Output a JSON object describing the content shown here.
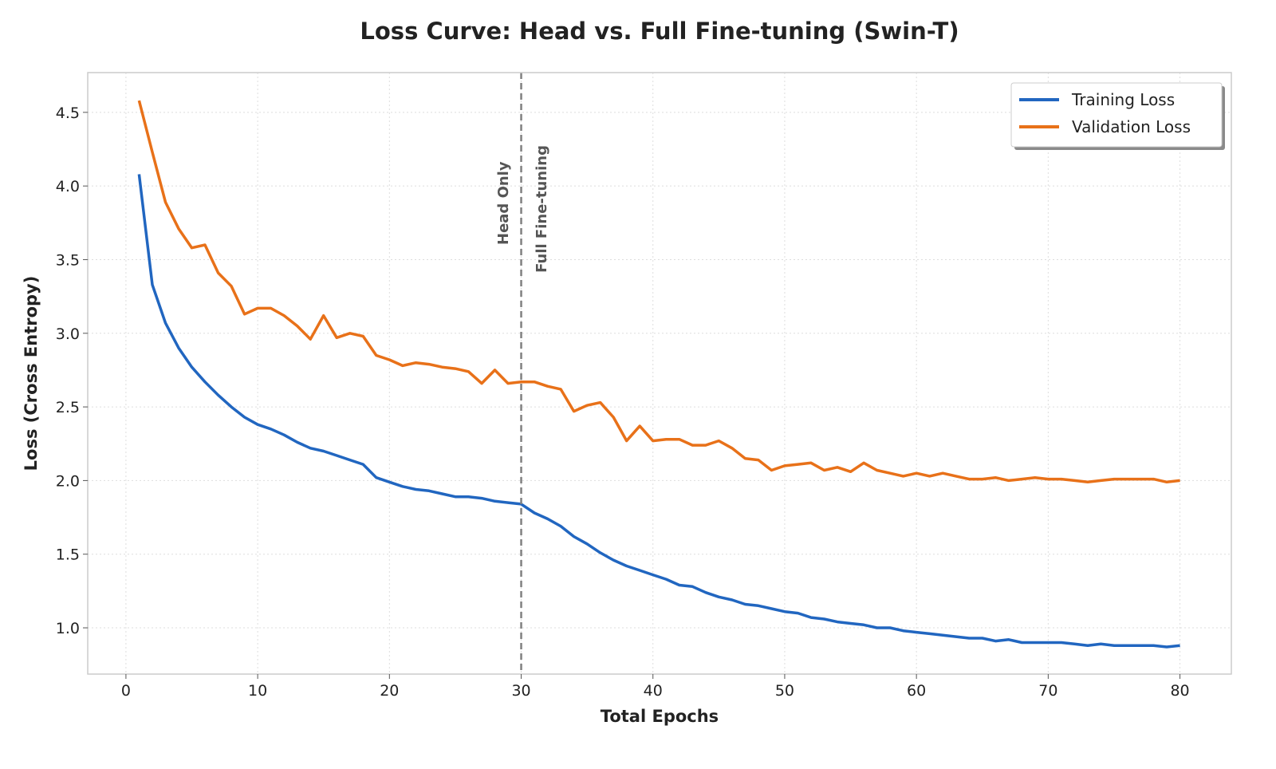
{
  "chart_data": {
    "type": "line",
    "title": "Loss Curve: Head vs. Full Fine-tuning (Swin-T)",
    "xlabel": "Total Epochs",
    "ylabel": "Loss (Cross Entropy)",
    "xlim": [
      -2.9,
      83.9
    ],
    "ylim": [
      0.686,
      4.77
    ],
    "xticks": [
      0,
      10,
      20,
      30,
      40,
      50,
      60,
      70,
      80
    ],
    "yticks": [
      1.0,
      1.5,
      2.0,
      2.5,
      3.0,
      3.5,
      4.0,
      4.5
    ],
    "ytick_labels": [
      "1.0",
      "1.5",
      "2.0",
      "2.5",
      "3.0",
      "3.5",
      "4.0",
      "4.5"
    ],
    "grid": true,
    "legend_position": "top-right",
    "x": [
      1,
      2,
      3,
      4,
      5,
      6,
      7,
      8,
      9,
      10,
      11,
      12,
      13,
      14,
      15,
      16,
      17,
      18,
      19,
      20,
      21,
      22,
      23,
      24,
      25,
      26,
      27,
      28,
      29,
      30,
      31,
      32,
      33,
      34,
      35,
      36,
      37,
      38,
      39,
      40,
      41,
      42,
      43,
      44,
      45,
      46,
      47,
      48,
      49,
      50,
      51,
      52,
      53,
      54,
      55,
      56,
      57,
      58,
      59,
      60,
      61,
      62,
      63,
      64,
      65,
      66,
      67,
      68,
      69,
      70,
      71,
      72,
      73,
      74,
      75,
      76,
      77,
      78,
      79,
      80
    ],
    "series": [
      {
        "name": "Training Loss",
        "color": "#2166c0",
        "values": [
          4.08,
          3.33,
          3.07,
          2.9,
          2.77,
          2.67,
          2.58,
          2.5,
          2.43,
          2.38,
          2.35,
          2.31,
          2.26,
          2.22,
          2.2,
          2.17,
          2.14,
          2.11,
          2.02,
          1.99,
          1.96,
          1.94,
          1.93,
          1.91,
          1.89,
          1.89,
          1.88,
          1.86,
          1.85,
          1.84,
          1.78,
          1.74,
          1.69,
          1.62,
          1.57,
          1.51,
          1.46,
          1.42,
          1.39,
          1.36,
          1.33,
          1.29,
          1.28,
          1.24,
          1.21,
          1.19,
          1.16,
          1.15,
          1.13,
          1.11,
          1.1,
          1.07,
          1.06,
          1.04,
          1.03,
          1.02,
          1.0,
          1.0,
          0.98,
          0.97,
          0.96,
          0.95,
          0.94,
          0.93,
          0.93,
          0.91,
          0.92,
          0.9,
          0.9,
          0.9,
          0.9,
          0.89,
          0.88,
          0.89,
          0.88,
          0.88,
          0.88,
          0.88,
          0.87,
          0.88
        ]
      },
      {
        "name": "Validation Loss",
        "color": "#e87119",
        "values": [
          4.58,
          4.23,
          3.89,
          3.71,
          3.58,
          3.6,
          3.41,
          3.32,
          3.13,
          3.17,
          3.17,
          3.12,
          3.05,
          2.96,
          3.12,
          2.97,
          3.0,
          2.98,
          2.85,
          2.82,
          2.78,
          2.8,
          2.79,
          2.77,
          2.76,
          2.74,
          2.66,
          2.75,
          2.66,
          2.67,
          2.67,
          2.64,
          2.62,
          2.47,
          2.51,
          2.53,
          2.43,
          2.27,
          2.37,
          2.27,
          2.28,
          2.28,
          2.24,
          2.24,
          2.27,
          2.22,
          2.15,
          2.14,
          2.07,
          2.1,
          2.11,
          2.12,
          2.07,
          2.09,
          2.06,
          2.12,
          2.07,
          2.05,
          2.03,
          2.05,
          2.03,
          2.05,
          2.03,
          2.01,
          2.01,
          2.02,
          2.0,
          2.01,
          2.02,
          2.01,
          2.01,
          2.0,
          1.99,
          2.0,
          2.01,
          2.01,
          2.01,
          2.01,
          1.99,
          2.0
        ]
      }
    ],
    "annotations": {
      "vline_x": 30,
      "vline_color": "#808080",
      "left_label": "Head Only",
      "right_label": "Full Fine-tuning"
    }
  }
}
